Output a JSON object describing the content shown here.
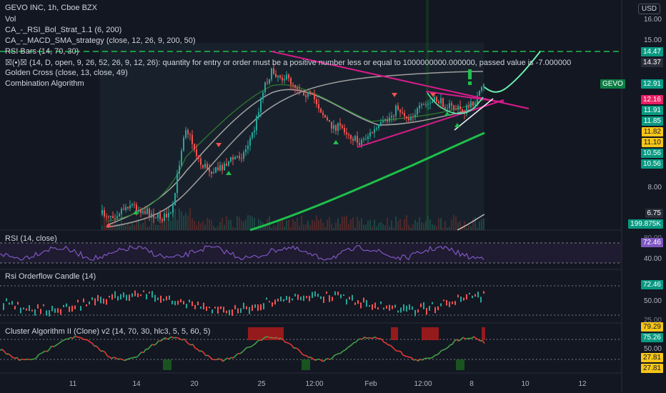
{
  "header": {
    "symbol_line": "GEVO INC, 1h, Cboe BZX",
    "currency": "USD"
  },
  "indicators": [
    "Vol",
    "CA_-_RSI_Bol_Strat_1.1 (6, 200)",
    "CA_-_MACD_SMA_strategy (close, 12, 26, 9, 200, 50)",
    "RSI Bars (14, 70, 30)",
    "☒(•)☒ (14, D, open, 9, 26, 52, 26, 9, 12, 26): quantity for entry or order must be a positive number less or equal to 1000000000.000000, passed value is -7.000000",
    "Golden Cross (close, 13, close, 49)",
    "Combination Algorithm"
  ],
  "gevo_tag": "GEVO",
  "price_axis": [
    "16.00",
    "15.00",
    "8.00"
  ],
  "price_labels": [
    {
      "text": "14.47",
      "color": "#089981"
    },
    {
      "text": "14.37",
      "color": "#2a2e39"
    },
    {
      "text": "12.91",
      "color": "#089981"
    },
    {
      "text": "12.16",
      "color": "#e91e63"
    },
    {
      "text": "11.91",
      "color": "#089981"
    },
    {
      "text": "11.85",
      "color": "#089981"
    },
    {
      "text": "11.82",
      "color": "#f5c518"
    },
    {
      "text": "11.10",
      "color": "#f5c518"
    },
    {
      "text": "10.56",
      "color": "#089981"
    },
    {
      "text": "10.56",
      "color": "#089981"
    },
    {
      "text": "6.75",
      "color": "#2a2e39"
    },
    {
      "text": "199.875K",
      "color": "#089981"
    }
  ],
  "rsi_pane": {
    "title": "RSI (14, close)",
    "value": "72.46",
    "axis": [
      "40.00"
    ],
    "partial_label": "80.00"
  },
  "orderflow_pane": {
    "title": "Rsi Orderflow Candle (14)",
    "value": "72.46",
    "axis": [
      "50.00"
    ],
    "partial_label": "25.00"
  },
  "cluster_pane": {
    "title": "Cluster Algorithm II (Clone) v2 (14, 70, 30, hlc3, 5, 5, 60, 5)",
    "labels": [
      {
        "text": "79.29",
        "color": "#f5c518"
      },
      {
        "text": "75.26",
        "color": "#089981"
      },
      {
        "text": "27.81",
        "color": "#f5c518"
      },
      {
        "text": "27.81",
        "color": "#f5c518"
      }
    ],
    "axis": [
      "50.00"
    ]
  },
  "time_axis": [
    "11",
    "14",
    "20",
    "25",
    "12:00",
    "Feb",
    "12:00",
    "8",
    "10",
    "12"
  ],
  "colors": {
    "background": "#131722",
    "up": "#26a69a",
    "down": "#ef5350",
    "magenta": "#c2185b",
    "green_line": "#1fbf4b",
    "rsi_purple": "#7e57c2"
  }
}
